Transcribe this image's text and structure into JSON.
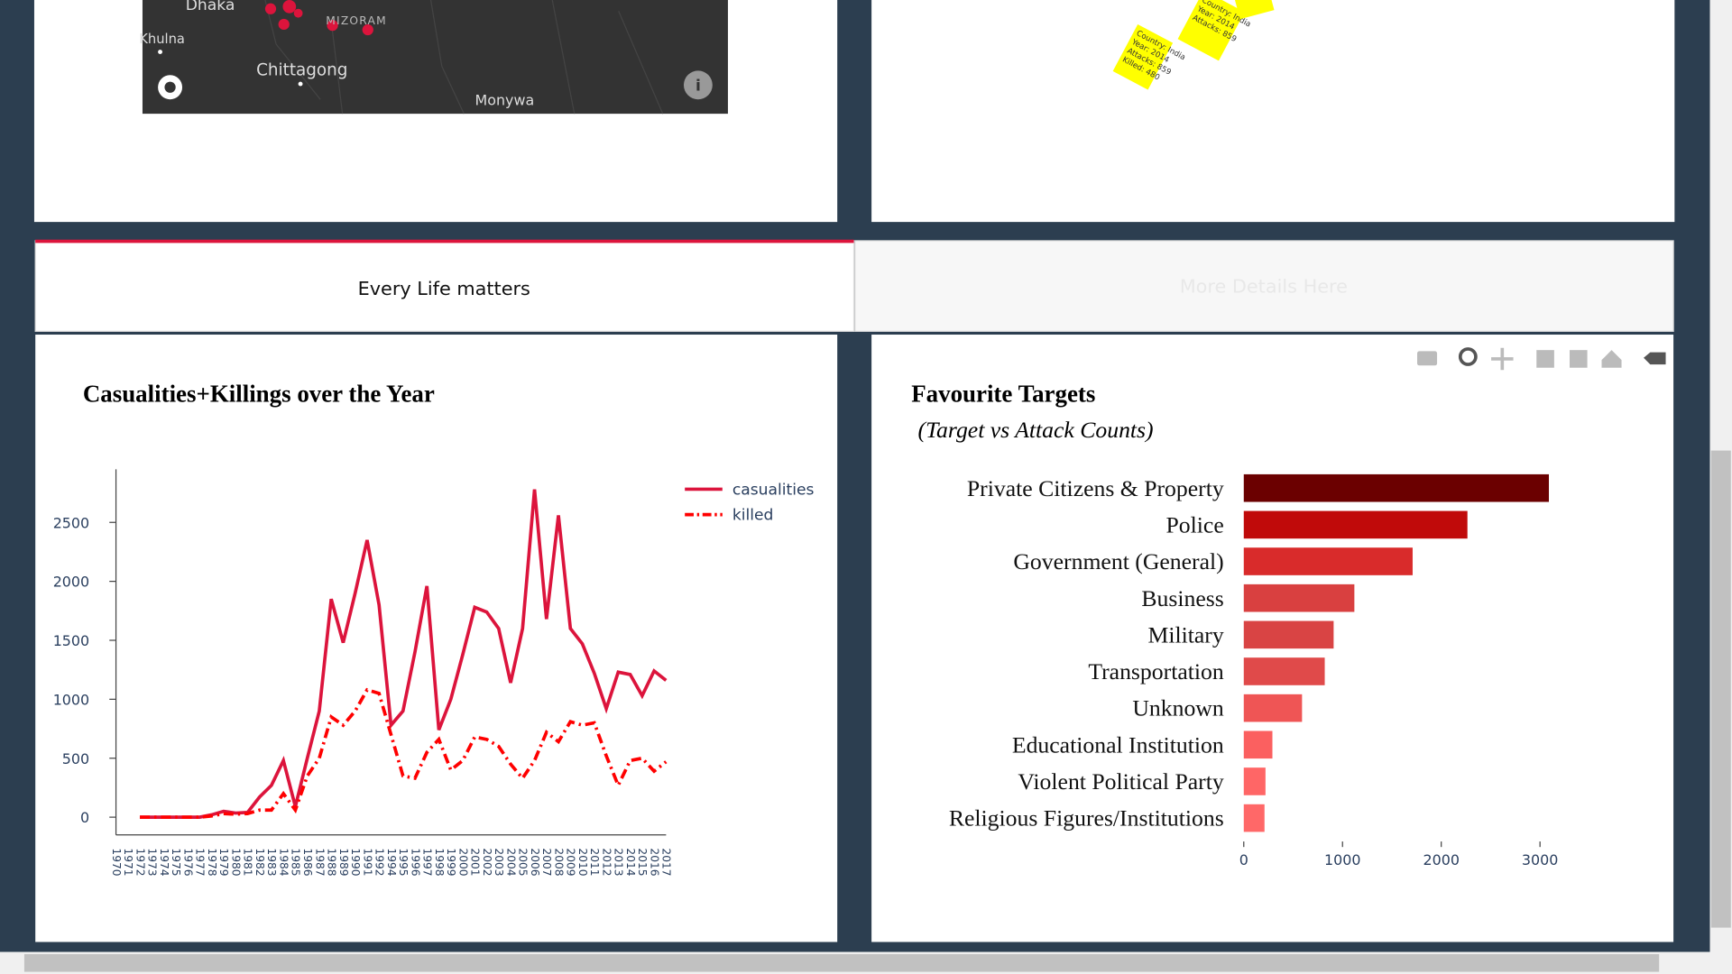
{
  "map": {
    "labels": [
      "Dhaka",
      "Khulna",
      "MIZORAM",
      "Chittagong",
      "Monywa"
    ]
  },
  "tooltips": [
    [
      "Country: India",
      "Year: 2014",
      "Attacks: 859"
    ],
    [
      "Country: India",
      "Year: 2014",
      "Attacks: 859",
      "Killed: 480"
    ]
  ],
  "tabs": [
    "Every Life matters",
    "More Details Here"
  ],
  "chart_data": [
    {
      "type": "line",
      "title": "Casualities+Killings over the Year",
      "categories": [
        "1970",
        "1971",
        "1972",
        "1973",
        "1974",
        "1975",
        "1976",
        "1977",
        "1978",
        "1979",
        "1980",
        "1981",
        "1982",
        "1983",
        "1984",
        "1985",
        "1986",
        "1987",
        "1988",
        "1989",
        "1990",
        "1991",
        "1992",
        "1994",
        "1995",
        "1996",
        "1997",
        "1998",
        "1999",
        "2000",
        "2001",
        "2002",
        "2003",
        "2004",
        "2005",
        "2006",
        "2007",
        "2008",
        "2009",
        "2010",
        "2011",
        "2012",
        "2013",
        "2014",
        "2015",
        "2016",
        "2017"
      ],
      "series": [
        {
          "name": "casualities",
          "color": "#dc143c",
          "dash": "solid",
          "values": [
            null,
            null,
            0,
            0,
            0,
            0,
            0,
            0,
            20,
            50,
            35,
            40,
            170,
            270,
            480,
            90,
            500,
            900,
            1850,
            1480,
            1900,
            2350,
            1800,
            780,
            900,
            1400,
            1960,
            740,
            1000,
            1380,
            1780,
            1740,
            1600,
            1140,
            1600,
            2780,
            1680,
            2560,
            1600,
            1470,
            1220,
            920,
            1230,
            1210,
            1030,
            1240,
            1160
          ]
        },
        {
          "name": "killed",
          "color": "#ff0000",
          "dash": "dashdot",
          "values": [
            null,
            null,
            0,
            0,
            0,
            0,
            0,
            0,
            10,
            30,
            25,
            30,
            60,
            60,
            200,
            60,
            350,
            500,
            850,
            780,
            900,
            1080,
            1050,
            700,
            350,
            330,
            550,
            660,
            400,
            480,
            680,
            660,
            600,
            450,
            330,
            480,
            720,
            640,
            810,
            780,
            800,
            520,
            270,
            480,
            500,
            390,
            470
          ]
        }
      ],
      "ylim": [
        -150,
        2950
      ],
      "yticks": [
        0,
        500,
        1000,
        1500,
        2000,
        2500
      ],
      "legend": "top-right"
    },
    {
      "type": "hbar",
      "title": "Favourite Targets",
      "subtitle": "(Target vs Attack Counts)",
      "categories": [
        "Private Citizens & Property",
        "Police",
        "Government (General)",
        "Business",
        "Military",
        "Transportation",
        "Unknown",
        "Educational Institution",
        "Violent Political Party",
        "Religious Figures/Institutions"
      ],
      "values": [
        3090,
        2265,
        1710,
        1120,
        910,
        820,
        590,
        290,
        220,
        210
      ],
      "colors": [
        "#6b0000",
        "#c00a0a",
        "#d92b2b",
        "#d94040",
        "#d94444",
        "#e04a4a",
        "#ef5555",
        "#fb6060",
        "#ff6666",
        "#ff6868"
      ],
      "xlim": [
        0,
        3300
      ],
      "xticks": [
        0,
        1000,
        2000,
        3000
      ]
    }
  ]
}
